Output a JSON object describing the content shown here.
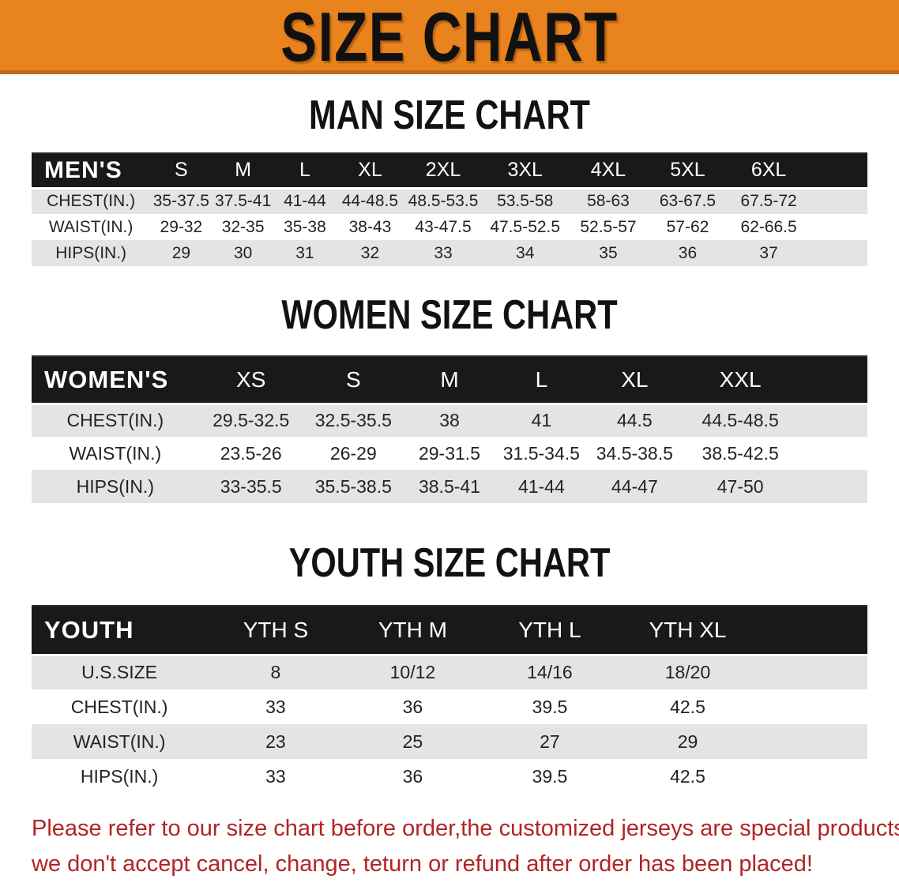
{
  "banner": {
    "title": "SIZE CHART"
  },
  "sections": [
    {
      "heading": "MAN SIZE CHART",
      "header_label": "MEN'S",
      "columns": [
        "S",
        "M",
        "L",
        "XL",
        "2XL",
        "3XL",
        "4XL",
        "5XL",
        "6XL"
      ],
      "rows": [
        {
          "label": "CHEST(IN.)",
          "values": [
            "35-37.5",
            "37.5-41",
            "41-44",
            "44-48.5",
            "48.5-53.5",
            "53.5-58",
            "58-63",
            "63-67.5",
            "67.5-72"
          ]
        },
        {
          "label": "WAIST(IN.)",
          "values": [
            "29-32",
            "32-35",
            "35-38",
            "38-43",
            "43-47.5",
            "47.5-52.5",
            "52.5-57",
            "57-62",
            "62-66.5"
          ]
        },
        {
          "label": "HIPS(IN.)",
          "values": [
            "29",
            "30",
            "31",
            "32",
            "33",
            "34",
            "35",
            "36",
            "37"
          ]
        }
      ]
    },
    {
      "heading": "WOMEN SIZE CHART",
      "header_label": "WOMEN'S",
      "columns": [
        "XS",
        "S",
        "M",
        "L",
        "XL",
        "XXL"
      ],
      "rows": [
        {
          "label": "CHEST(IN.)",
          "values": [
            "29.5-32.5",
            "32.5-35.5",
            "38",
            "41",
            "44.5",
            "44.5-48.5"
          ]
        },
        {
          "label": "WAIST(IN.)",
          "values": [
            "23.5-26",
            "26-29",
            "29-31.5",
            "31.5-34.5",
            "34.5-38.5",
            "38.5-42.5"
          ]
        },
        {
          "label": "HIPS(IN.)",
          "values": [
            "33-35.5",
            "35.5-38.5",
            "38.5-41",
            "41-44",
            "44-47",
            "47-50"
          ]
        }
      ]
    },
    {
      "heading": "YOUTH SIZE CHART",
      "header_label": "YOUTH",
      "columns": [
        "YTH S",
        "YTH M",
        "YTH L",
        "YTH XL"
      ],
      "rows": [
        {
          "label": "U.S.SIZE",
          "values": [
            "8",
            "10/12",
            "14/16",
            "18/20"
          ]
        },
        {
          "label": "CHEST(IN.)",
          "values": [
            "33",
            "36",
            "39.5",
            "42.5"
          ]
        },
        {
          "label": "WAIST(IN.)",
          "values": [
            "23",
            "25",
            "27",
            "29"
          ]
        },
        {
          "label": "HIPS(IN.)",
          "values": [
            "33",
            "36",
            "39.5",
            "42.5"
          ]
        }
      ]
    }
  ],
  "disclaimer": {
    "line1": "Please refer to our size chart before order,the customized jerseys are special products,",
    "line2": "we don't accept cancel, change, teturn or refund after order has been placed!"
  },
  "colors": {
    "banner_orange": "#E9831E",
    "banner_border": "#C06A15",
    "header_black": "#191919",
    "stripe_gray": "#e4e4e4",
    "disclaimer_red": "#B22424"
  }
}
